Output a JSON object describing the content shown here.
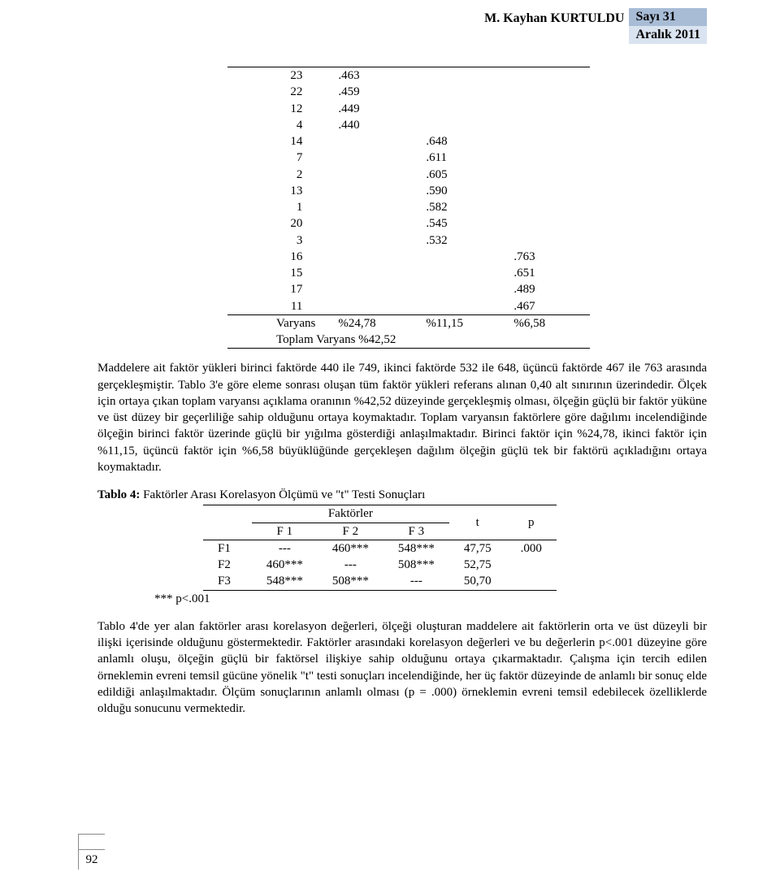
{
  "header": {
    "author": "M. Kayhan KURTULDU",
    "issue_top": "Sayı 31",
    "issue_bottom": "Aralık 2011"
  },
  "factor_loadings": {
    "rows": [
      {
        "item": "23",
        "c1": ".463",
        "c2": "",
        "c3": ""
      },
      {
        "item": "22",
        "c1": ".459",
        "c2": "",
        "c3": ""
      },
      {
        "item": "12",
        "c1": ".449",
        "c2": "",
        "c3": ""
      },
      {
        "item": "4",
        "c1": ".440",
        "c2": "",
        "c3": ""
      },
      {
        "item": "14",
        "c1": "",
        "c2": ".648",
        "c3": ""
      },
      {
        "item": "7",
        "c1": "",
        "c2": ".611",
        "c3": ""
      },
      {
        "item": "2",
        "c1": "",
        "c2": ".605",
        "c3": ""
      },
      {
        "item": "13",
        "c1": "",
        "c2": ".590",
        "c3": ""
      },
      {
        "item": "1",
        "c1": "",
        "c2": ".582",
        "c3": ""
      },
      {
        "item": "20",
        "c1": "",
        "c2": ".545",
        "c3": ""
      },
      {
        "item": "3",
        "c1": "",
        "c2": ".532",
        "c3": ""
      },
      {
        "item": "16",
        "c1": "",
        "c2": "",
        "c3": ".763"
      },
      {
        "item": "15",
        "c1": "",
        "c2": "",
        "c3": ".651"
      },
      {
        "item": "17",
        "c1": "",
        "c2": "",
        "c3": ".489"
      },
      {
        "item": "11",
        "c1": "",
        "c2": "",
        "c3": ".467"
      }
    ],
    "variance": {
      "label": "Varyans",
      "v1": "%24,78",
      "v2": "%11,15",
      "v3": "%6,58"
    },
    "total": {
      "label": "Toplam Varyans %42,52"
    }
  },
  "paragraph1": "Maddelere ait faktör yükleri birinci faktörde 440 ile 749, ikinci faktörde 532 ile 648, üçüncü faktörde 467 ile 763 arasında gerçekleşmiştir. Tablo 3'e göre eleme sonrası oluşan tüm faktör yükleri referans alınan 0,40 alt sınırının üzerindedir. Ölçek için ortaya çıkan toplam varyansı açıklama oranının %42,52 düzeyinde gerçekleşmiş olması, ölçeğin güçlü bir faktör yüküne ve üst düzey bir geçerliliğe sahip olduğunu ortaya koymaktadır. Toplam varyansın faktörlere göre dağılımı incelendiğinde ölçeğin birinci faktör üzerinde güçlü bir yığılma gösterdiği anlaşılmaktadır. Birinci faktör için %24,78, ikinci faktör için %11,15, üçüncü faktör için %6,58 büyüklüğünde gerçekleşen dağılım ölçeğin güçlü tek bir faktörü açıkladığını ortaya koymaktadır.",
  "table4": {
    "title_bold": "Tablo 4:",
    "title_rest": " Faktörler Arası Korelasyon Ölçümü ve \"t\" Testi Sonuçları",
    "header_group": "Faktörler",
    "cols": [
      "F 1",
      "F 2",
      "F 3"
    ],
    "t_label": "t",
    "p_label": "p",
    "rows": [
      {
        "label": "F1",
        "c1": "---",
        "c2": "460***",
        "c3": "548***",
        "t": "47,75",
        "p": ".000"
      },
      {
        "label": "F2",
        "c1": "460***",
        "c2": "---",
        "c3": "508***",
        "t": "52,75",
        "p": ""
      },
      {
        "label": "F3",
        "c1": "548***",
        "c2": "508***",
        "c3": "---",
        "t": "50,70",
        "p": ""
      }
    ],
    "sig_note": "*** p<.001"
  },
  "paragraph2": "Tablo 4'de yer alan faktörler arası korelasyon değerleri, ölçeği oluşturan maddelere ait faktörlerin orta ve üst düzeyli bir ilişki içerisinde olduğunu göstermektedir. Faktörler arasındaki korelasyon değerleri ve bu değerlerin p<.001 düzeyine göre anlamlı oluşu, ölçeğin güçlü bir faktörsel ilişkiye sahip olduğunu ortaya çıkarmaktadır. Çalışma için tercih edilen örneklemin evreni temsil gücüne yönelik \"t\" testi sonuçları incelendiğinde, her üç faktör düzeyinde de anlamlı bir sonuç elde edildiği anlaşılmaktadır. Ölçüm sonuçlarının anlamlı olması (p = .000) örneklemin evreni temsil edebilecek özelliklerde olduğu sonucunu vermektedir.",
  "page_number": "92"
}
